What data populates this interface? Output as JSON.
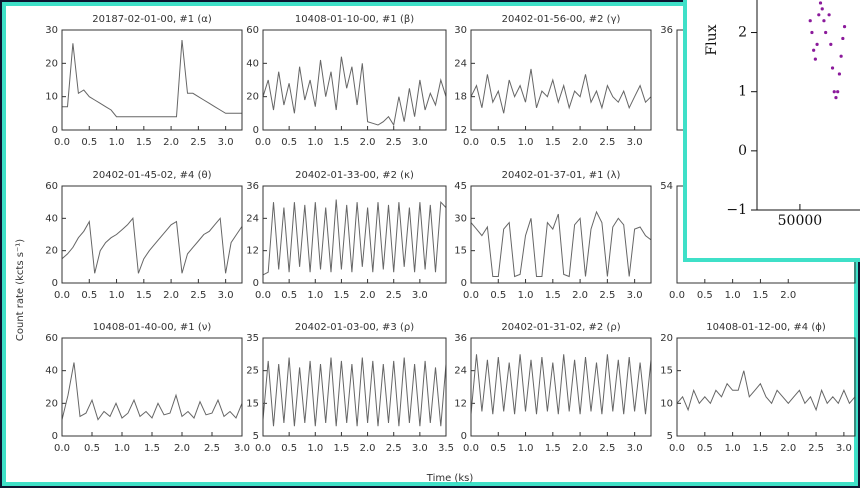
{
  "figure": {
    "y_label": "Count rate  (kcts s⁻¹)",
    "x_label": "Time  (ks)"
  },
  "chart_data": [
    {
      "type": "line",
      "title": "20187-02-01-00, #1 (α)",
      "xlim": [
        0,
        3.3
      ],
      "ylim": [
        0,
        30
      ],
      "yticks": [
        0,
        10,
        20,
        30
      ],
      "xticks": [
        {
          "value": 0,
          "label": "0.0"
        },
        0.5,
        {
          "value": 1,
          "label": "1.0"
        },
        1.5,
        {
          "value": 2,
          "label": "2.0"
        },
        2.5,
        {
          "value": 3,
          "label": "3.0"
        }
      ],
      "x": [
        0,
        0.1,
        0.2,
        0.3,
        0.4,
        0.5,
        0.6,
        0.7,
        0.8,
        0.9,
        1,
        1.1,
        1.2,
        1.3,
        1.4,
        1.5,
        1.6,
        1.7,
        1.8,
        1.9,
        2,
        2.1,
        2.2,
        2.3,
        2.4,
        2.5,
        2.6,
        2.7,
        2.8,
        2.9,
        3,
        3.1,
        3.2,
        3.3
      ],
      "series": [
        {
          "color": "#666666",
          "values": [
            7,
            7,
            26,
            11,
            12,
            10,
            9,
            8,
            7,
            6,
            4,
            4,
            4,
            4,
            4,
            4,
            4,
            4,
            4,
            4,
            4,
            4,
            27,
            11,
            11,
            10,
            9,
            8,
            7,
            6,
            5,
            5,
            5,
            5
          ]
        }
      ]
    },
    {
      "type": "line",
      "title": "10408-01-10-00, #1 (β)",
      "xlim": [
        0,
        3.5
      ],
      "ylim": [
        0,
        60
      ],
      "yticks": [
        0,
        20,
        40,
        60
      ],
      "xticks": [
        {
          "value": 0,
          "label": "0.0"
        },
        0.5,
        {
          "value": 1,
          "label": "1.0"
        },
        1.5,
        {
          "value": 2,
          "label": "2.0"
        },
        2.5,
        {
          "value": 3,
          "label": "3.0"
        }
      ],
      "x": [
        0,
        0.1,
        0.2,
        0.3,
        0.4,
        0.5,
        0.6,
        0.7,
        0.8,
        0.9,
        1,
        1.1,
        1.2,
        1.3,
        1.4,
        1.5,
        1.6,
        1.7,
        1.8,
        1.9,
        2,
        2.1,
        2.2,
        2.3,
        2.4,
        2.5,
        2.6,
        2.7,
        2.8,
        2.9,
        3,
        3.1,
        3.2,
        3.3,
        3.4,
        3.5
      ],
      "series": [
        {
          "color": "#666666",
          "values": [
            20,
            30,
            12,
            35,
            15,
            28,
            10,
            38,
            18,
            30,
            14,
            42,
            20,
            35,
            12,
            44,
            25,
            38,
            15,
            40,
            5,
            4,
            3,
            5,
            8,
            3,
            20,
            5,
            25,
            8,
            30,
            12,
            22,
            15,
            30,
            20
          ]
        }
      ]
    },
    {
      "type": "line",
      "title": "20402-01-56-00, #2 (γ)",
      "xlim": [
        0,
        3.3
      ],
      "ylim": [
        12,
        30
      ],
      "yticks": [
        12,
        18,
        24,
        30
      ],
      "xticks": [
        {
          "value": 0,
          "label": "0.0"
        },
        0.5,
        {
          "value": 1,
          "label": "1.0"
        },
        1.5,
        {
          "value": 2,
          "label": "2.0"
        },
        2.5,
        {
          "value": 3,
          "label": "3.0"
        }
      ],
      "x": [
        0,
        0.1,
        0.2,
        0.3,
        0.4,
        0.5,
        0.6,
        0.7,
        0.8,
        0.9,
        1,
        1.1,
        1.2,
        1.3,
        1.4,
        1.5,
        1.6,
        1.7,
        1.8,
        1.9,
        2,
        2.1,
        2.2,
        2.3,
        2.4,
        2.5,
        2.6,
        2.7,
        2.8,
        2.9,
        3,
        3.1,
        3.2,
        3.3
      ],
      "series": [
        {
          "color": "#666666",
          "values": [
            18,
            20,
            16,
            22,
            17,
            19,
            15,
            21,
            18,
            20,
            17,
            23,
            16,
            19,
            18,
            21,
            17,
            20,
            16,
            19,
            18,
            22,
            17,
            19,
            16,
            20,
            18,
            17,
            19,
            16,
            18,
            20,
            17,
            18
          ]
        }
      ]
    },
    {
      "type": "line",
      "xlim": [
        0,
        3.2
      ],
      "ylim": [
        0,
        36
      ],
      "yticks": [
        36
      ]
    },
    {
      "type": "line",
      "title": "20402-01-45-02, #4 (θ)",
      "xlim": [
        0,
        3.3
      ],
      "ylim": [
        0,
        60
      ],
      "yticks": [
        0,
        20,
        40,
        60
      ],
      "xticks": [
        {
          "value": 0,
          "label": "0.0"
        },
        0.5,
        {
          "value": 1,
          "label": "1.0"
        },
        1.5,
        {
          "value": 2,
          "label": "2.0"
        },
        2.5,
        {
          "value": 3,
          "label": "3.0"
        }
      ],
      "x": [
        0,
        0.1,
        0.2,
        0.3,
        0.4,
        0.5,
        0.6,
        0.7,
        0.8,
        0.9,
        1,
        1.1,
        1.2,
        1.3,
        1.4,
        1.5,
        1.6,
        1.7,
        1.8,
        1.9,
        2,
        2.1,
        2.2,
        2.3,
        2.4,
        2.5,
        2.6,
        2.7,
        2.8,
        2.9,
        3,
        3.1,
        3.2,
        3.3
      ],
      "series": [
        {
          "color": "#666666",
          "values": [
            15,
            18,
            22,
            28,
            32,
            38,
            6,
            20,
            25,
            28,
            30,
            33,
            36,
            40,
            6,
            15,
            20,
            24,
            28,
            32,
            36,
            38,
            6,
            18,
            22,
            26,
            30,
            32,
            36,
            40,
            6,
            25,
            30,
            35
          ]
        }
      ]
    },
    {
      "type": "line",
      "title": "20402-01-33-00, #2 (κ)",
      "xlim": [
        0,
        3.5
      ],
      "ylim": [
        0,
        36
      ],
      "yticks": [
        0,
        12,
        24,
        36
      ],
      "xticks": [
        {
          "value": 0,
          "label": "0.0"
        },
        0.5,
        {
          "value": 1,
          "label": "1.0"
        },
        1.5,
        {
          "value": 2,
          "label": "2.0"
        },
        2.5,
        {
          "value": 3,
          "label": "3.0"
        }
      ],
      "x": [
        0,
        0.1,
        0.2,
        0.3,
        0.4,
        0.5,
        0.6,
        0.7,
        0.8,
        0.9,
        1,
        1.1,
        1.2,
        1.3,
        1.4,
        1.5,
        1.6,
        1.7,
        1.8,
        1.9,
        2,
        2.1,
        2.2,
        2.3,
        2.4,
        2.5,
        2.6,
        2.7,
        2.8,
        2.9,
        3,
        3.1,
        3.2,
        3.3,
        3.4,
        3.5
      ],
      "series": [
        {
          "color": "#666666",
          "values": [
            3,
            4,
            30,
            5,
            28,
            4,
            30,
            6,
            29,
            4,
            30,
            5,
            28,
            4,
            31,
            5,
            29,
            4,
            30,
            6,
            28,
            4,
            30,
            5,
            29,
            4,
            30,
            6,
            28,
            4,
            30,
            5,
            29,
            4,
            30,
            28
          ]
        }
      ]
    },
    {
      "type": "line",
      "title": "20402-01-37-01, #1 (λ)",
      "xlim": [
        0,
        3.3
      ],
      "ylim": [
        0,
        45
      ],
      "yticks": [
        0,
        15,
        30,
        45
      ],
      "xticks": [
        {
          "value": 0,
          "label": "0.0"
        },
        0.5,
        {
          "value": 1,
          "label": "1.0"
        },
        1.5,
        {
          "value": 2,
          "label": "2.0"
        },
        2.5,
        {
          "value": 3,
          "label": "3.0"
        }
      ],
      "x": [
        0,
        0.1,
        0.2,
        0.3,
        0.4,
        0.5,
        0.6,
        0.7,
        0.8,
        0.9,
        1,
        1.1,
        1.2,
        1.3,
        1.4,
        1.5,
        1.6,
        1.7,
        1.8,
        1.9,
        2,
        2.1,
        2.2,
        2.3,
        2.4,
        2.5,
        2.6,
        2.7,
        2.8,
        2.9,
        3,
        3.1,
        3.2,
        3.3
      ],
      "series": [
        {
          "color": "#666666",
          "values": [
            28,
            25,
            22,
            26,
            3,
            3,
            25,
            28,
            3,
            4,
            22,
            30,
            3,
            3,
            28,
            25,
            32,
            4,
            3,
            27,
            30,
            3,
            25,
            33,
            28,
            3,
            26,
            30,
            27,
            3,
            25,
            26,
            22,
            20
          ]
        }
      ]
    },
    {
      "type": "line",
      "xlim": [
        0,
        3.2
      ],
      "ylim": [
        0,
        54
      ],
      "yticks": [
        54
      ],
      "xticks": [
        {
          "value": 0,
          "label": "0.0"
        },
        0.5,
        {
          "value": 1,
          "label": "1.0"
        },
        1.5,
        {
          "value": 2,
          "label": "2.0"
        }
      ]
    },
    {
      "type": "line",
      "title": "10408-01-40-00, #1 (ν)",
      "xlim": [
        0,
        3
      ],
      "ylim": [
        0,
        60
      ],
      "yticks": [
        0,
        20,
        40,
        60
      ],
      "xticks": [
        {
          "value": 0,
          "label": "0.0"
        },
        0.5,
        {
          "value": 1,
          "label": "1.0"
        },
        1.5,
        {
          "value": 2,
          "label": "2.0"
        },
        2.5,
        {
          "value": 3,
          "label": "3.0"
        }
      ],
      "x": [
        0,
        0.1,
        0.2,
        0.3,
        0.4,
        0.5,
        0.6,
        0.7,
        0.8,
        0.9,
        1,
        1.1,
        1.2,
        1.3,
        1.4,
        1.5,
        1.6,
        1.7,
        1.8,
        1.9,
        2,
        2.1,
        2.2,
        2.3,
        2.4,
        2.5,
        2.6,
        2.7,
        2.8,
        2.9,
        3
      ],
      "series": [
        {
          "color": "#666666",
          "values": [
            10,
            25,
            45,
            12,
            14,
            22,
            10,
            15,
            12,
            20,
            11,
            14,
            22,
            12,
            15,
            11,
            20,
            13,
            14,
            25,
            12,
            15,
            11,
            21,
            13,
            14,
            22,
            12,
            15,
            11,
            20
          ]
        }
      ]
    },
    {
      "type": "line",
      "title": "20402-01-03-00, #3 (ρ)",
      "xlim": [
        0,
        3.5
      ],
      "ylim": [
        5,
        35
      ],
      "yticks": [
        5,
        15,
        25,
        35
      ],
      "xticks": [
        {
          "value": 0,
          "label": "0.0"
        },
        0.5,
        {
          "value": 1,
          "label": "1.0"
        },
        1.5,
        {
          "value": 2,
          "label": "2.0"
        },
        2.5,
        {
          "value": 3,
          "label": "3.0"
        },
        3.5
      ],
      "x": [
        0,
        0.1,
        0.2,
        0.3,
        0.4,
        0.5,
        0.6,
        0.7,
        0.8,
        0.9,
        1,
        1.1,
        1.2,
        1.3,
        1.4,
        1.5,
        1.6,
        1.7,
        1.8,
        1.9,
        2,
        2.1,
        2.2,
        2.3,
        2.4,
        2.5,
        2.6,
        2.7,
        2.8,
        2.9,
        3,
        3.1,
        3.2,
        3.3,
        3.4,
        3.5
      ],
      "series": [
        {
          "color": "#666666",
          "values": [
            10,
            28,
            8,
            27,
            9,
            29,
            8,
            26,
            9,
            28,
            8,
            27,
            9,
            29,
            8,
            28,
            9,
            27,
            8,
            29,
            9,
            28,
            8,
            27,
            9,
            28,
            8,
            29,
            9,
            27,
            8,
            28,
            9,
            26,
            8,
            27
          ]
        }
      ]
    },
    {
      "type": "line",
      "title": "20402-01-31-02, #2 (ρ)",
      "xlim": [
        0,
        3.3
      ],
      "ylim": [
        0,
        36
      ],
      "yticks": [
        0,
        12,
        24,
        36
      ],
      "xticks": [
        {
          "value": 0,
          "label": "0.0"
        },
        0.5,
        {
          "value": 1,
          "label": "1.0"
        },
        1.5,
        {
          "value": 2,
          "label": "2.0"
        },
        2.5,
        {
          "value": 3,
          "label": "3.0"
        }
      ],
      "x": [
        0,
        0.1,
        0.2,
        0.3,
        0.4,
        0.5,
        0.6,
        0.7,
        0.8,
        0.9,
        1,
        1.1,
        1.2,
        1.3,
        1.4,
        1.5,
        1.6,
        1.7,
        1.8,
        1.9,
        2,
        2.1,
        2.2,
        2.3,
        2.4,
        2.5,
        2.6,
        2.7,
        2.8,
        2.9,
        3,
        3.1,
        3.2,
        3.3
      ],
      "series": [
        {
          "color": "#666666",
          "values": [
            8,
            30,
            9,
            28,
            8,
            29,
            9,
            27,
            8,
            30,
            9,
            28,
            8,
            29,
            9,
            27,
            8,
            30,
            9,
            28,
            8,
            29,
            9,
            27,
            8,
            30,
            9,
            28,
            8,
            29,
            9,
            27,
            8,
            28
          ]
        }
      ]
    },
    {
      "type": "line",
      "title": "10408-01-12-00, #4 (ϕ)",
      "xlim": [
        0,
        3.2
      ],
      "ylim": [
        5,
        20
      ],
      "yticks": [
        5,
        10,
        15,
        20
      ],
      "xticks": [
        {
          "value": 0,
          "label": "0.0"
        },
        0.5,
        {
          "value": 1,
          "label": "1.0"
        },
        1.5,
        {
          "value": 2,
          "label": "2.0"
        },
        2.5,
        {
          "value": 3,
          "label": "3.0"
        }
      ],
      "x": [
        0,
        0.1,
        0.2,
        0.3,
        0.4,
        0.5,
        0.6,
        0.7,
        0.8,
        0.9,
        1,
        1.1,
        1.2,
        1.3,
        1.4,
        1.5,
        1.6,
        1.7,
        1.8,
        1.9,
        2,
        2.1,
        2.2,
        2.3,
        2.4,
        2.5,
        2.6,
        2.7,
        2.8,
        2.9,
        3,
        3.1,
        3.2
      ],
      "series": [
        {
          "color": "#666666",
          "values": [
            10,
            11,
            9,
            12,
            10,
            11,
            10,
            12,
            11,
            13,
            12,
            12,
            15,
            11,
            12,
            13,
            11,
            10,
            12,
            11,
            10,
            11,
            12,
            10,
            11,
            9,
            12,
            10,
            11,
            10,
            12,
            10,
            11
          ]
        }
      ]
    },
    {
      "type": "scatter",
      "y_label": "Flux",
      "color": "#8b1a9b",
      "xlim": [
        47500,
        53500
      ],
      "ylim": [
        -1,
        2.55
      ],
      "xticks": [
        50000
      ],
      "yticks": [
        {
          "value": -1,
          "label": "−1"
        },
        0,
        1,
        2
      ],
      "x": [
        50600,
        50700,
        50800,
        50900,
        51000,
        51100,
        51200,
        51300,
        51400,
        51500,
        51700,
        51800,
        51900,
        52000,
        52100,
        52200,
        52300,
        52400,
        52500,
        52600
      ],
      "values": [
        2.2,
        2.0,
        1.7,
        1.55,
        1.8,
        2.3,
        2.5,
        2.4,
        2.2,
        2.0,
        2.3,
        1.8,
        1.4,
        1.0,
        0.9,
        1.0,
        1.3,
        1.6,
        1.9,
        2.1
      ]
    }
  ]
}
